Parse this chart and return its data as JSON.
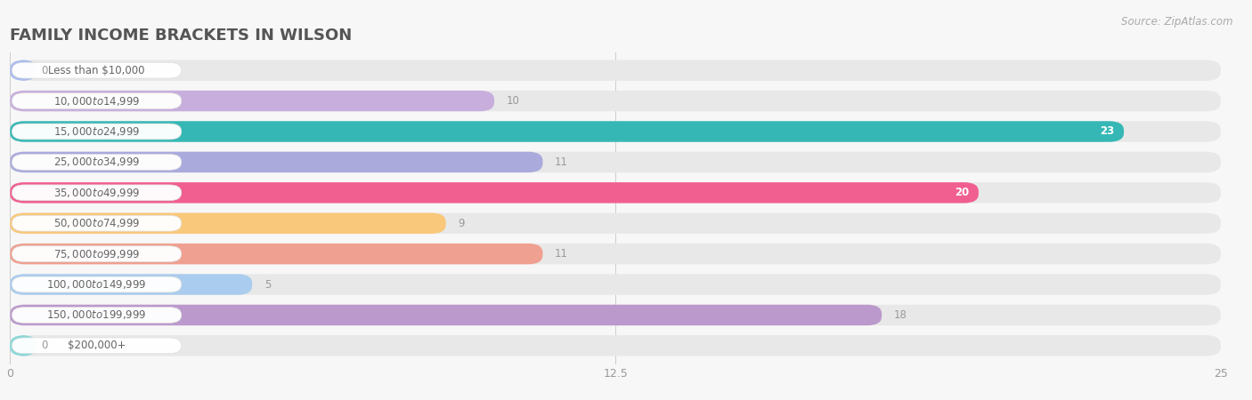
{
  "title": "FAMILY INCOME BRACKETS IN WILSON",
  "source": "Source: ZipAtlas.com",
  "categories": [
    "Less than $10,000",
    "$10,000 to $14,999",
    "$15,000 to $24,999",
    "$25,000 to $34,999",
    "$35,000 to $49,999",
    "$50,000 to $74,999",
    "$75,000 to $99,999",
    "$100,000 to $149,999",
    "$150,000 to $199,999",
    "$200,000+"
  ],
  "values": [
    0,
    10,
    23,
    11,
    20,
    9,
    11,
    5,
    18,
    0
  ],
  "bar_colors": [
    "#aabbee",
    "#c8aedd",
    "#35b8b5",
    "#aaaadd",
    "#f05f90",
    "#f9c87a",
    "#f0a090",
    "#aaccee",
    "#bb99cc",
    "#88d8d8"
  ],
  "label_colors_on_bar": [
    "#888888",
    "#888888",
    "#ffffff",
    "#888888",
    "#ffffff",
    "#888888",
    "#888888",
    "#888888",
    "#888888",
    "#888888"
  ],
  "xlim": [
    0,
    25
  ],
  "xticks": [
    0,
    12.5,
    25
  ],
  "background_color": "#f7f7f7",
  "row_bg_color": "#eeeeee",
  "title_fontsize": 13,
  "label_fontsize": 8.5,
  "value_fontsize": 8.5,
  "source_fontsize": 8.5
}
